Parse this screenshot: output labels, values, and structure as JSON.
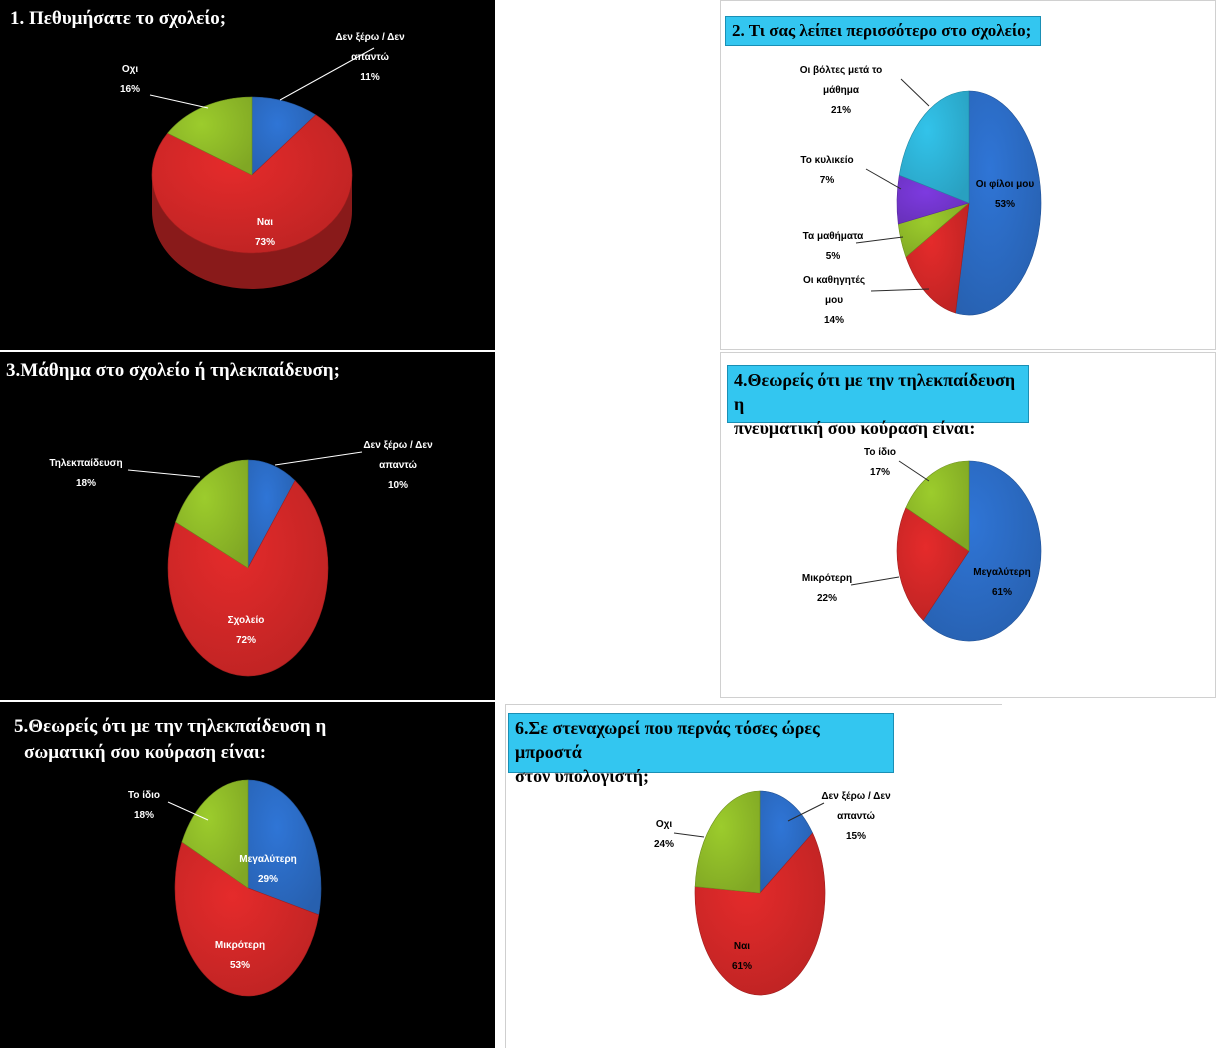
{
  "colors": {
    "blue": "#2f75d6",
    "red": "#e52b2b",
    "green": "#9ccc2c",
    "purple": "#7d3ae0",
    "cyan": "#32c3ea",
    "title_box": "#33c6f0"
  },
  "chart_data": [
    {
      "id": "c1",
      "type": "pie",
      "title": "1. Πεθυμήσατε το σχολείο;",
      "slices": [
        {
          "label": [
            "Δεν ξέρω / Δεν",
            "απαντώ"
          ],
          "value": 11,
          "pct": "11%",
          "color": "#2f75d6"
        },
        {
          "label": [
            "Ναι"
          ],
          "value": 73,
          "pct": "73%",
          "color": "#e52b2b"
        },
        {
          "label": [
            "Οχι"
          ],
          "value": 16,
          "pct": "16%",
          "color": "#9ccc2c"
        }
      ]
    },
    {
      "id": "c2",
      "type": "pie",
      "title": "2. Τι σας λείπει περισσότερο στο σχολείο;",
      "slices": [
        {
          "label": [
            "Οι φίλοι μου"
          ],
          "value": 53,
          "pct": "53%",
          "color": "#2f75d6"
        },
        {
          "label": [
            "Οι καθηγητές",
            "μου"
          ],
          "value": 14,
          "pct": "14%",
          "color": "#e52b2b"
        },
        {
          "label": [
            "Τα μαθήματα"
          ],
          "value": 5,
          "pct": "5%",
          "color": "#9ccc2c"
        },
        {
          "label": [
            "Το κυλικείο"
          ],
          "value": 7,
          "pct": "7%",
          "color": "#7d3ae0"
        },
        {
          "label": [
            "Οι βόλτες μετά το",
            "μάθημα"
          ],
          "value": 21,
          "pct": "21%",
          "color": "#32c3ea"
        }
      ]
    },
    {
      "id": "c3",
      "type": "pie",
      "title": "3.Μάθημα στο σχολείο ή τηλεκπαίδευση;",
      "slices": [
        {
          "label": [
            "Δεν ξέρω / Δεν",
            "απαντώ"
          ],
          "value": 10,
          "pct": "10%",
          "color": "#2f75d6"
        },
        {
          "label": [
            "Σχολείο"
          ],
          "value": 72,
          "pct": "72%",
          "color": "#e52b2b"
        },
        {
          "label": [
            "Τηλεκπαίδευση"
          ],
          "value": 18,
          "pct": "18%",
          "color": "#9ccc2c"
        }
      ]
    },
    {
      "id": "c4",
      "type": "pie",
      "title": [
        "4.Θεωρείς ότι με την τηλεκπαίδευση η",
        "πνευματική σου κούραση είναι:"
      ],
      "slices": [
        {
          "label": [
            "Μεγαλύτερη"
          ],
          "value": 61,
          "pct": "61%",
          "color": "#2f75d6"
        },
        {
          "label": [
            "Μικρότερη"
          ],
          "value": 22,
          "pct": "22%",
          "color": "#e52b2b"
        },
        {
          "label": [
            "Το ίδιο"
          ],
          "value": 17,
          "pct": "17%",
          "color": "#9ccc2c"
        }
      ]
    },
    {
      "id": "c5",
      "type": "pie",
      "title": [
        "5.Θεωρείς ότι με την τηλεκπαίδευση η",
        "σωματική σου κούραση είναι:"
      ],
      "slices": [
        {
          "label": [
            "Μεγαλύτερη"
          ],
          "value": 29,
          "pct": "29%",
          "color": "#2f75d6"
        },
        {
          "label": [
            "Μικρότερη"
          ],
          "value": 53,
          "pct": "53%",
          "color": "#e52b2b"
        },
        {
          "label": [
            "Το ίδιο"
          ],
          "value": 18,
          "pct": "18%",
          "color": "#9ccc2c"
        }
      ]
    },
    {
      "id": "c6",
      "type": "pie",
      "title": [
        "6.Σε στεναχωρεί που περνάς τόσες ώρες μπροστά",
        "στον υπολογιστή;"
      ],
      "slices": [
        {
          "label": [
            "Δεν ξέρω / Δεν",
            "απαντώ"
          ],
          "value": 15,
          "pct": "15%",
          "color": "#2f75d6"
        },
        {
          "label": [
            "Ναι"
          ],
          "value": 61,
          "pct": "61%",
          "color": "#e52b2b"
        },
        {
          "label": [
            "Οχι"
          ],
          "value": 24,
          "pct": "24%",
          "color": "#9ccc2c"
        }
      ]
    }
  ]
}
